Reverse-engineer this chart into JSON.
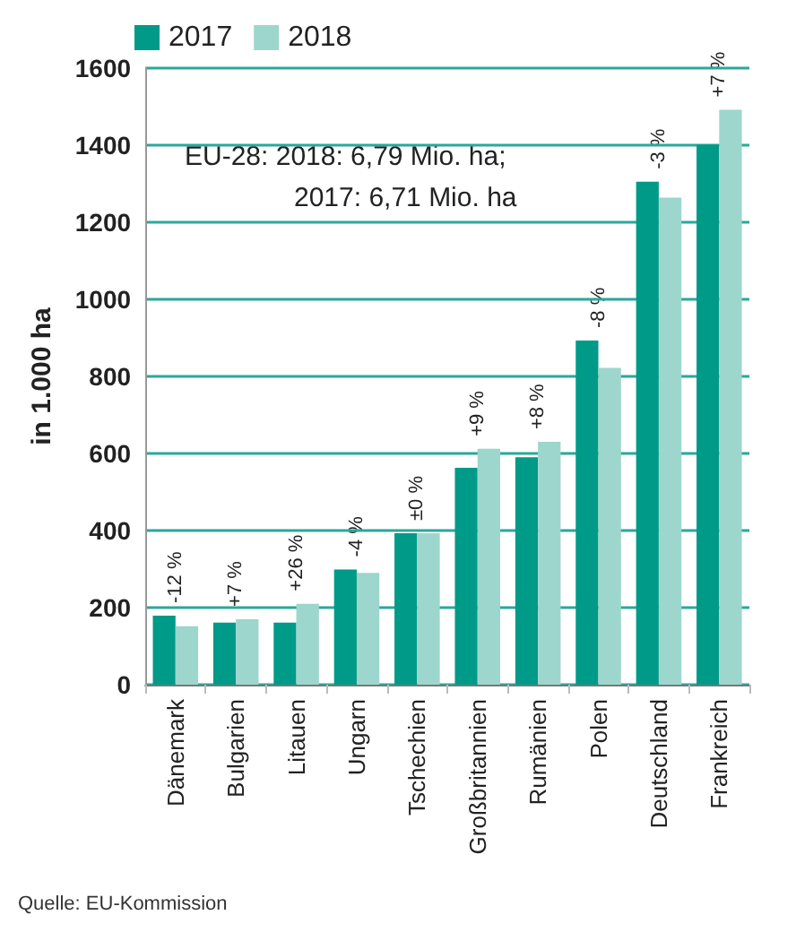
{
  "chart_data": {
    "type": "bar",
    "ylabel": "in 1.000 ha",
    "categories": [
      "Dänemark",
      "Bulgarien",
      "Litauen",
      "Ungarn",
      "Tschechien",
      "Großbritannien",
      "Rumänien",
      "Polen",
      "Deutschland",
      "Frankreich"
    ],
    "series": [
      {
        "name": "2017",
        "color": "#009a88",
        "values": [
          179,
          161,
          161,
          299,
          393,
          563,
          590,
          893,
          1305,
          1401
        ]
      },
      {
        "name": "2018",
        "color": "#9dd6cd",
        "values": [
          152,
          170,
          210,
          290,
          393,
          612,
          630,
          822,
          1264,
          1492
        ]
      }
    ],
    "ylim": [
      0,
      1600
    ],
    "yticks": [
      0,
      200,
      400,
      600,
      800,
      1000,
      1200,
      1400,
      1600
    ],
    "grid": "y",
    "legend": "top left",
    "annotations": [
      "EU-28: 2018: 6,79 Mio. ha;",
      "2017: 6,71 Mio. ha",
      "Quelle: EU-Kommission",
      {
        "text": "-12 %",
        "x": "Dänemark",
        "y": 179
      },
      {
        "text": "+7 %",
        "x": "Bulgarien",
        "y": 170
      },
      {
        "text": "+26 %",
        "x": "Litauen",
        "y": 210
      },
      {
        "text": "-4 %",
        "x": "Ungarn",
        "y": 299
      },
      {
        "text": "±0 %",
        "x": "Tschechien",
        "y": 393
      },
      {
        "text": "+9 %",
        "x": "Großbritannien",
        "y": 612
      },
      {
        "text": "+8 %",
        "x": "Rumänien",
        "y": 630
      },
      {
        "text": "-8 %",
        "x": "Polen",
        "y": 893
      },
      {
        "text": "-3 %",
        "x": "Deutschland",
        "y": 1305
      },
      {
        "text": "+7 %",
        "x": "Frankreich",
        "y": 1492
      }
    ]
  }
}
